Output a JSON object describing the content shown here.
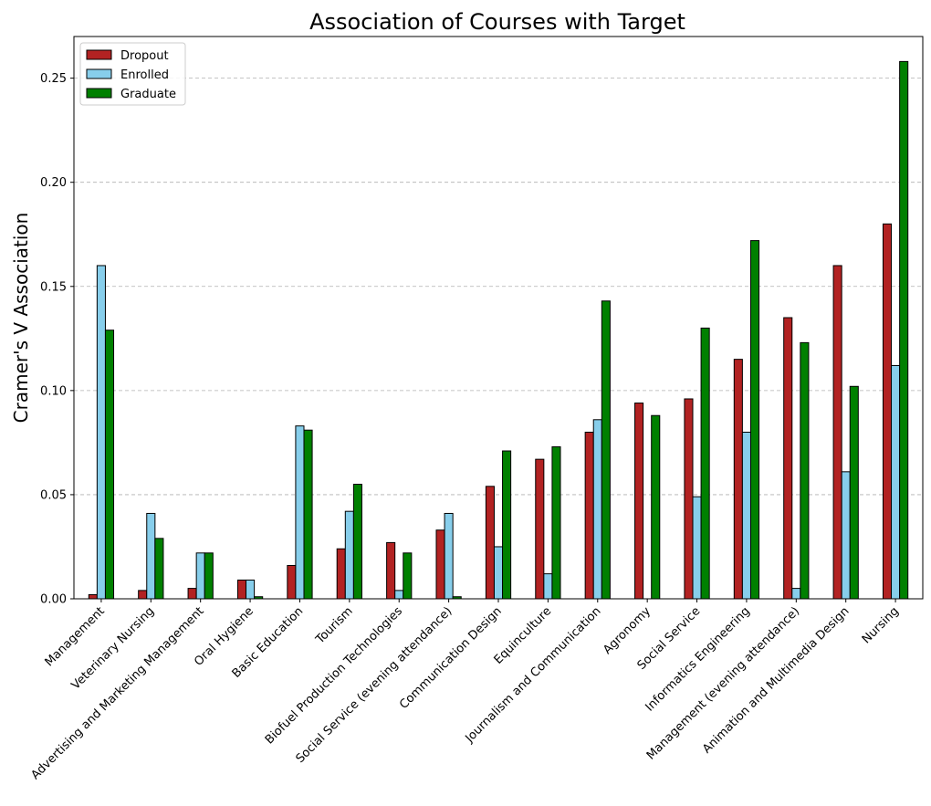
{
  "chart_data": {
    "type": "bar",
    "title": "Association of Courses with Target",
    "xlabel": "",
    "ylabel": "Cramer's V Association",
    "ylim": [
      0,
      0.27
    ],
    "yticks": [
      "0.00",
      "0.05",
      "0.10",
      "0.15",
      "0.20",
      "0.25"
    ],
    "grid": "y-dashed",
    "legend_position": "top-left",
    "categories": [
      "Management",
      "Veterinary Nursing",
      "Advertising and Marketing Management",
      "Oral Hygiene",
      "Basic Education",
      "Tourism",
      "Biofuel Production Technologies",
      "Social Service (evening attendance)",
      "Communication Design",
      "Equinculture",
      "Journalism and Communication",
      "Agronomy",
      "Social Service",
      "Informatics Engineering",
      "Management (evening attendance)",
      "Animation and Multimedia Design",
      "Nursing"
    ],
    "series": [
      {
        "name": "Dropout",
        "color": "#b22222",
        "values": [
          0.002,
          0.004,
          0.005,
          0.009,
          0.016,
          0.024,
          0.027,
          0.033,
          0.054,
          0.067,
          0.08,
          0.094,
          0.096,
          0.115,
          0.135,
          0.16,
          0.18
        ]
      },
      {
        "name": "Enrolled",
        "color": "#87ceeb",
        "values": [
          0.16,
          0.041,
          0.022,
          0.009,
          0.083,
          0.042,
          0.004,
          0.041,
          0.025,
          0.012,
          0.086,
          0.0,
          0.049,
          0.08,
          0.005,
          0.061,
          0.112
        ]
      },
      {
        "name": "Graduate",
        "color": "#008000",
        "values": [
          0.129,
          0.029,
          0.022,
          0.001,
          0.081,
          0.055,
          0.022,
          0.001,
          0.071,
          0.073,
          0.143,
          0.088,
          0.13,
          0.172,
          0.123,
          0.102,
          0.258
        ]
      }
    ]
  }
}
